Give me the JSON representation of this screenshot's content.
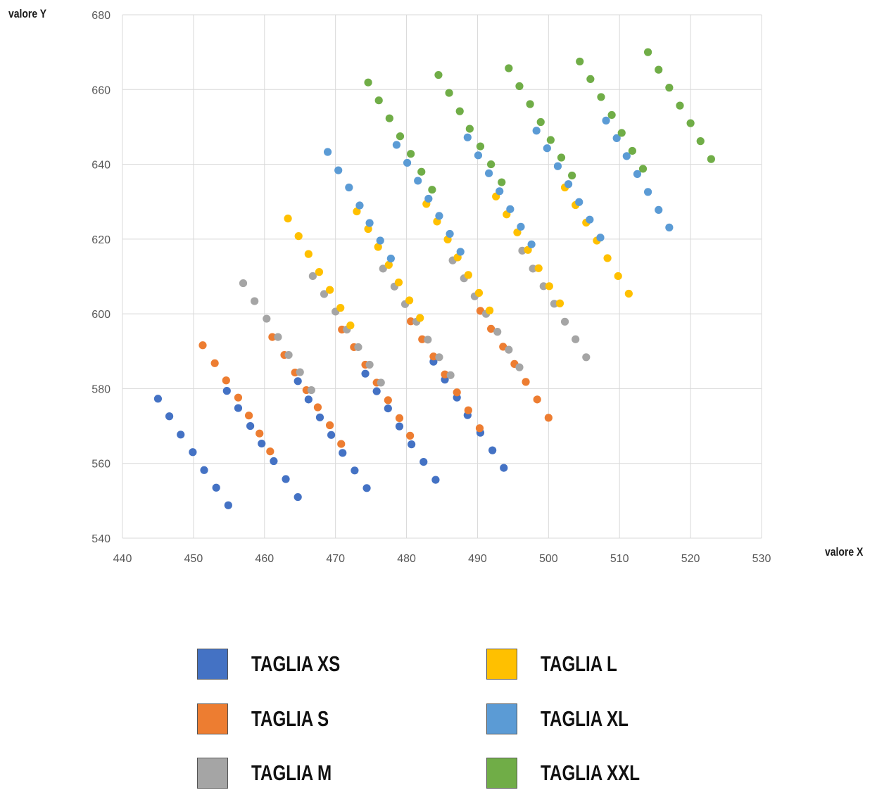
{
  "chart_data": {
    "type": "scatter",
    "xlabel": "valore X",
    "ylabel": "valore Y",
    "xlim": [
      440,
      530
    ],
    "ylim": [
      540,
      680
    ],
    "x_ticks": [
      440,
      450,
      460,
      470,
      480,
      490,
      500,
      510,
      520,
      530
    ],
    "y_ticks": [
      540,
      560,
      580,
      600,
      620,
      640,
      660,
      680
    ],
    "grid": true,
    "legend_position": "bottom",
    "series": [
      {
        "name": "TAGLIA XS",
        "color": "#4472C4",
        "points": [
          [
            445.0,
            577.3
          ],
          [
            446.6,
            572.6
          ],
          [
            448.2,
            567.7
          ],
          [
            449.9,
            563.0
          ],
          [
            451.5,
            558.2
          ],
          [
            453.2,
            553.5
          ],
          [
            454.9,
            548.8
          ],
          [
            454.7,
            579.4
          ],
          [
            456.3,
            574.8
          ],
          [
            458.0,
            570.0
          ],
          [
            459.6,
            565.3
          ],
          [
            461.3,
            560.6
          ],
          [
            463.0,
            555.8
          ],
          [
            464.7,
            551.0
          ],
          [
            464.7,
            582.0
          ],
          [
            466.2,
            577.1
          ],
          [
            467.8,
            572.3
          ],
          [
            469.4,
            567.6
          ],
          [
            471.0,
            562.8
          ],
          [
            472.7,
            558.1
          ],
          [
            474.4,
            553.4
          ],
          [
            474.2,
            584.0
          ],
          [
            475.8,
            579.3
          ],
          [
            477.4,
            574.7
          ],
          [
            479.0,
            569.9
          ],
          [
            480.7,
            565.1
          ],
          [
            482.4,
            560.4
          ],
          [
            484.1,
            555.6
          ],
          [
            483.8,
            587.2
          ],
          [
            485.4,
            582.4
          ],
          [
            487.1,
            577.6
          ],
          [
            488.6,
            572.9
          ],
          [
            490.4,
            568.2
          ],
          [
            492.1,
            563.5
          ],
          [
            493.7,
            558.8
          ]
        ]
      },
      {
        "name": "TAGLIA S",
        "color": "#ED7D31",
        "points": [
          [
            451.3,
            591.6
          ],
          [
            453.0,
            586.8
          ],
          [
            454.6,
            582.2
          ],
          [
            456.3,
            577.6
          ],
          [
            457.8,
            572.8
          ],
          [
            459.3,
            568.0
          ],
          [
            460.8,
            563.2
          ],
          [
            461.1,
            593.8
          ],
          [
            462.8,
            589.0
          ],
          [
            464.3,
            584.3
          ],
          [
            465.9,
            579.6
          ],
          [
            467.5,
            575.0
          ],
          [
            469.2,
            570.2
          ],
          [
            470.8,
            565.2
          ],
          [
            470.9,
            595.8
          ],
          [
            472.6,
            591.1
          ],
          [
            474.2,
            586.4
          ],
          [
            475.8,
            581.6
          ],
          [
            477.4,
            576.9
          ],
          [
            479.0,
            572.1
          ],
          [
            480.5,
            567.4
          ],
          [
            480.6,
            598.0
          ],
          [
            482.2,
            593.2
          ],
          [
            483.8,
            588.6
          ],
          [
            485.4,
            583.8
          ],
          [
            487.1,
            579.0
          ],
          [
            488.7,
            574.2
          ],
          [
            490.3,
            569.4
          ],
          [
            490.4,
            600.8
          ],
          [
            491.9,
            596.0
          ],
          [
            493.6,
            591.2
          ],
          [
            495.2,
            586.6
          ],
          [
            496.8,
            581.8
          ],
          [
            498.4,
            577.1
          ],
          [
            500.0,
            572.2
          ]
        ]
      },
      {
        "name": "TAGLIA M",
        "color": "#A5A5A5",
        "points": [
          [
            457.0,
            608.2
          ],
          [
            458.6,
            603.4
          ],
          [
            460.3,
            598.7
          ],
          [
            461.9,
            593.8
          ],
          [
            463.4,
            589.0
          ],
          [
            465.0,
            584.4
          ],
          [
            466.6,
            579.6
          ],
          [
            466.8,
            610.1
          ],
          [
            468.4,
            605.3
          ],
          [
            470.0,
            600.6
          ],
          [
            471.6,
            595.8
          ],
          [
            473.2,
            591.1
          ],
          [
            474.8,
            586.4
          ],
          [
            476.4,
            581.6
          ],
          [
            476.7,
            612.1
          ],
          [
            478.3,
            607.3
          ],
          [
            479.8,
            602.6
          ],
          [
            481.4,
            597.9
          ],
          [
            483.0,
            593.1
          ],
          [
            484.6,
            588.4
          ],
          [
            486.2,
            583.6
          ],
          [
            486.5,
            614.3
          ],
          [
            488.1,
            609.5
          ],
          [
            489.6,
            604.7
          ],
          [
            491.2,
            600.0
          ],
          [
            492.8,
            595.2
          ],
          [
            494.4,
            590.4
          ],
          [
            495.9,
            585.7
          ],
          [
            496.3,
            616.9
          ],
          [
            497.8,
            612.1
          ],
          [
            499.3,
            607.4
          ],
          [
            500.8,
            602.7
          ],
          [
            502.3,
            597.9
          ],
          [
            503.8,
            593.2
          ],
          [
            505.3,
            588.4
          ]
        ]
      },
      {
        "name": "TAGLIA L",
        "color": "#FFC000",
        "points": [
          [
            463.3,
            625.5
          ],
          [
            464.8,
            620.8
          ],
          [
            466.2,
            616.0
          ],
          [
            467.7,
            611.2
          ],
          [
            469.2,
            606.4
          ],
          [
            470.7,
            601.6
          ],
          [
            472.1,
            596.9
          ],
          [
            473.0,
            627.4
          ],
          [
            474.6,
            622.7
          ],
          [
            476.0,
            617.9
          ],
          [
            477.5,
            613.1
          ],
          [
            478.9,
            608.4
          ],
          [
            480.4,
            603.6
          ],
          [
            481.9,
            598.9
          ],
          [
            482.8,
            629.4
          ],
          [
            484.3,
            624.7
          ],
          [
            485.8,
            619.9
          ],
          [
            487.2,
            615.1
          ],
          [
            488.7,
            610.4
          ],
          [
            490.2,
            605.6
          ],
          [
            491.7,
            600.9
          ],
          [
            492.6,
            631.4
          ],
          [
            494.1,
            626.6
          ],
          [
            495.6,
            621.8
          ],
          [
            497.1,
            617.1
          ],
          [
            498.6,
            612.2
          ],
          [
            500.1,
            607.4
          ],
          [
            501.6,
            602.8
          ],
          [
            502.3,
            633.8
          ],
          [
            503.8,
            629.1
          ],
          [
            505.3,
            624.4
          ],
          [
            506.8,
            619.6
          ],
          [
            508.3,
            614.9
          ],
          [
            509.8,
            610.1
          ],
          [
            511.3,
            605.4
          ]
        ]
      },
      {
        "name": "TAGLIA XL",
        "color": "#5B9BD5",
        "points": [
          [
            468.9,
            643.3
          ],
          [
            470.4,
            638.4
          ],
          [
            471.9,
            633.8
          ],
          [
            473.4,
            629.0
          ],
          [
            474.8,
            624.3
          ],
          [
            476.3,
            619.6
          ],
          [
            477.8,
            614.8
          ],
          [
            478.6,
            645.2
          ],
          [
            480.1,
            640.4
          ],
          [
            481.6,
            635.6
          ],
          [
            483.1,
            630.8
          ],
          [
            484.6,
            626.2
          ],
          [
            486.1,
            621.4
          ],
          [
            487.6,
            616.6
          ],
          [
            488.6,
            647.2
          ],
          [
            490.1,
            642.4
          ],
          [
            491.6,
            637.6
          ],
          [
            493.1,
            632.8
          ],
          [
            494.6,
            628.0
          ],
          [
            496.1,
            623.3
          ],
          [
            497.6,
            618.6
          ],
          [
            498.3,
            649.0
          ],
          [
            499.8,
            644.3
          ],
          [
            501.3,
            639.5
          ],
          [
            502.8,
            634.7
          ],
          [
            504.3,
            629.9
          ],
          [
            505.8,
            625.2
          ],
          [
            507.3,
            620.4
          ],
          [
            508.1,
            651.7
          ],
          [
            509.6,
            647.0
          ],
          [
            511.0,
            642.2
          ],
          [
            512.5,
            637.4
          ],
          [
            514.0,
            632.6
          ],
          [
            515.5,
            627.8
          ],
          [
            517.0,
            623.1
          ]
        ]
      },
      {
        "name": "TAGLIA XXL",
        "color": "#70AD47",
        "points": [
          [
            474.6,
            661.9
          ],
          [
            476.1,
            657.1
          ],
          [
            477.6,
            652.3
          ],
          [
            479.1,
            647.5
          ],
          [
            480.6,
            642.8
          ],
          [
            482.1,
            638.0
          ],
          [
            483.6,
            633.2
          ],
          [
            484.5,
            663.9
          ],
          [
            486.0,
            659.1
          ],
          [
            487.5,
            654.2
          ],
          [
            488.9,
            649.5
          ],
          [
            490.4,
            644.8
          ],
          [
            491.9,
            640.0
          ],
          [
            493.4,
            635.2
          ],
          [
            494.4,
            665.7
          ],
          [
            495.9,
            660.9
          ],
          [
            497.4,
            656.1
          ],
          [
            498.9,
            651.3
          ],
          [
            500.3,
            646.5
          ],
          [
            501.8,
            641.8
          ],
          [
            503.3,
            637.0
          ],
          [
            504.4,
            667.5
          ],
          [
            505.9,
            662.8
          ],
          [
            507.4,
            658.0
          ],
          [
            508.9,
            653.2
          ],
          [
            510.3,
            648.4
          ],
          [
            511.8,
            643.6
          ],
          [
            513.3,
            638.8
          ],
          [
            514.0,
            670.0
          ],
          [
            515.5,
            665.3
          ],
          [
            517.0,
            660.5
          ],
          [
            518.5,
            655.7
          ],
          [
            520.0,
            651.0
          ],
          [
            521.4,
            646.2
          ],
          [
            522.9,
            641.4
          ]
        ]
      }
    ]
  },
  "legend": {
    "items": [
      {
        "label": "TAGLIA XS",
        "color": "#4472C4"
      },
      {
        "label": "TAGLIA S",
        "color": "#ED7D31"
      },
      {
        "label": "TAGLIA M",
        "color": "#A5A5A5"
      },
      {
        "label": "TAGLIA L",
        "color": "#FFC000"
      },
      {
        "label": "TAGLIA XL",
        "color": "#5B9BD5"
      },
      {
        "label": "TAGLIA XXL",
        "color": "#70AD47"
      }
    ]
  }
}
